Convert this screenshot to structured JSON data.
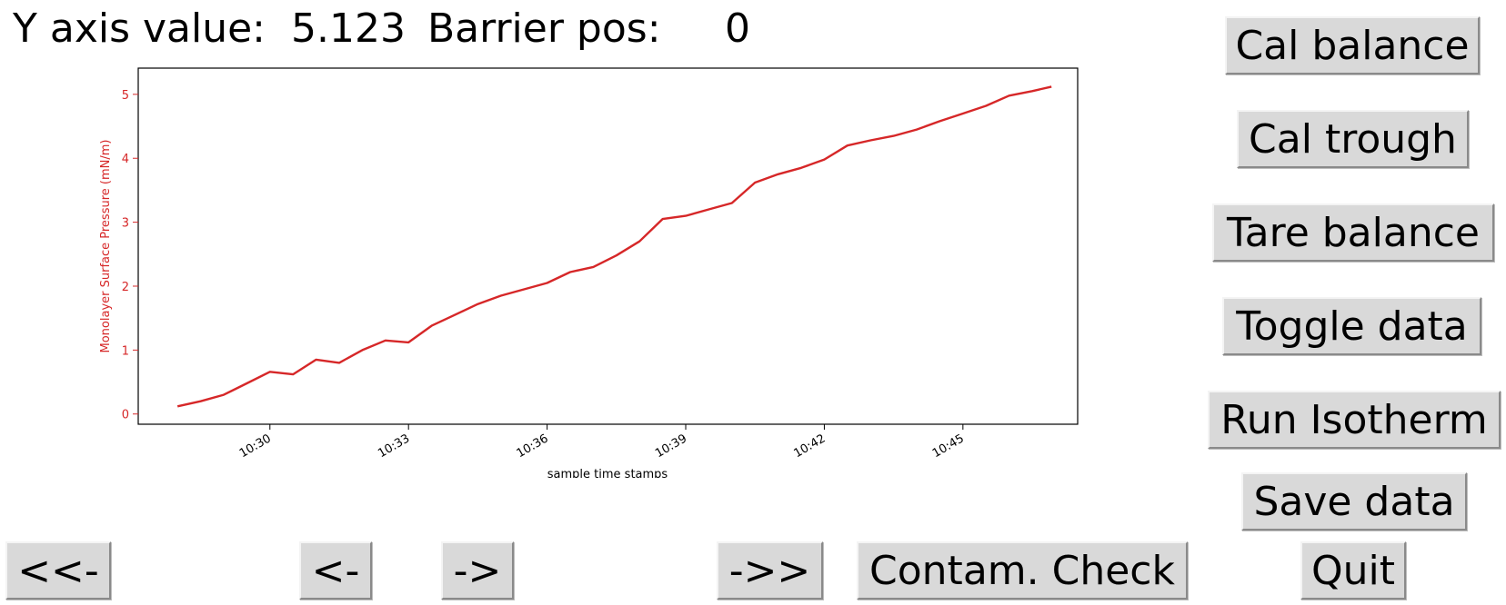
{
  "readouts": {
    "y_label": "Y axis value:",
    "y_value": "5.123",
    "barrier_label": "Barrier pos:",
    "barrier_value": "0"
  },
  "side_buttons": {
    "cal_balance": "Cal balance",
    "cal_trough": "Cal trough",
    "tare_balance": "Tare balance",
    "toggle_data": "Toggle data",
    "run_isotherm": "Run Isotherm",
    "save_data": "Save data",
    "quit": "Quit"
  },
  "nav_buttons": {
    "first": "<<-",
    "prev": "<-",
    "next": "->",
    "last": "->>",
    "contam_check": "Contam. Check"
  },
  "colors": {
    "series": "#d62728",
    "button_face": "#d9d9d9"
  },
  "chart_data": {
    "type": "line",
    "xlabel": "sample time stamps",
    "ylabel": "Monolayer Surface Pressure (mN/m)",
    "x_ticks": [
      "10:30",
      "10:33",
      "10:36",
      "10:39",
      "10:42",
      "10:45"
    ],
    "y_ticks": [
      "0",
      "1",
      "2",
      "3",
      "4",
      "5"
    ],
    "xlim": [
      "10:27:09",
      "10:47:29"
    ],
    "ylim": [
      -0.16,
      5.41
    ],
    "grid": false,
    "series": [
      {
        "x": [
          "10:28:00",
          "10:28:30",
          "10:29:00",
          "10:29:30",
          "10:30:00",
          "10:30:30",
          "10:31:00",
          "10:31:30",
          "10:32:00",
          "10:32:30",
          "10:33:00",
          "10:33:30",
          "10:34:00",
          "10:34:30",
          "10:35:00",
          "10:35:30",
          "10:36:00",
          "10:36:30",
          "10:37:00",
          "10:37:30",
          "10:38:00",
          "10:38:30",
          "10:39:00",
          "10:39:30",
          "10:40:00",
          "10:40:30",
          "10:41:00",
          "10:41:30",
          "10:42:00",
          "10:42:30",
          "10:43:00",
          "10:43:30",
          "10:44:00",
          "10:44:30",
          "10:45:00",
          "10:45:30",
          "10:46:00",
          "10:46:30",
          "10:46:55"
        ],
        "y": [
          0.12,
          0.2,
          0.3,
          0.48,
          0.66,
          0.62,
          0.85,
          0.8,
          1.0,
          1.15,
          1.12,
          1.38,
          1.55,
          1.72,
          1.85,
          1.95,
          2.05,
          2.22,
          2.3,
          2.48,
          2.7,
          3.05,
          3.1,
          3.2,
          3.3,
          3.62,
          3.75,
          3.85,
          3.98,
          4.2,
          4.28,
          4.35,
          4.45,
          4.58,
          4.7,
          4.82,
          4.98,
          5.05,
          5.12
        ]
      }
    ]
  }
}
